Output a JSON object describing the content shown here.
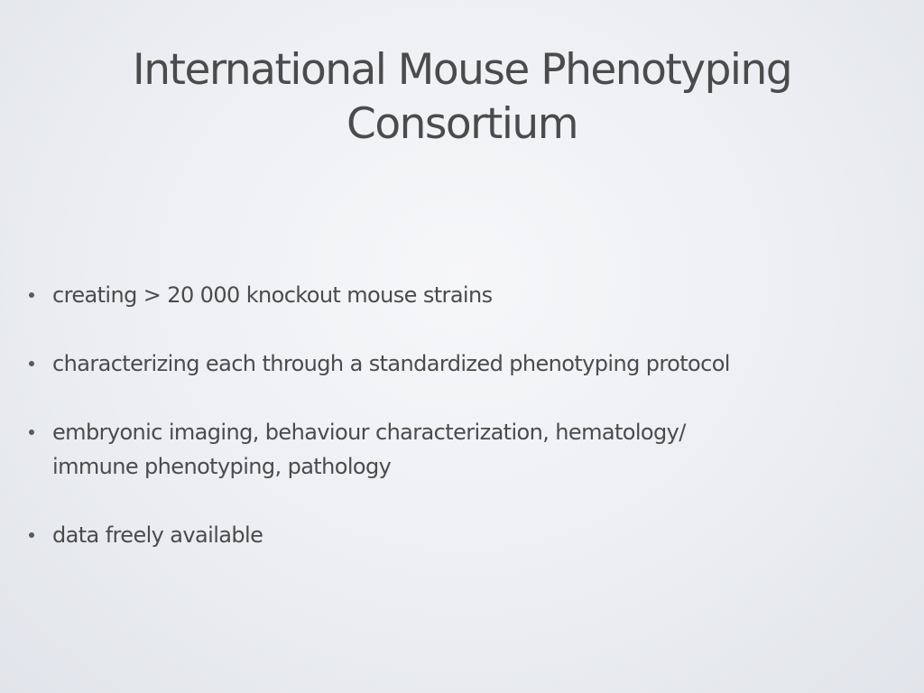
{
  "slide": {
    "title_lines": [
      "International Mouse Phenotyping",
      "Consortium"
    ],
    "bullets": [
      {
        "lines": [
          "creating > 20 000 knockout mouse strains"
        ]
      },
      {
        "lines": [
          "characterizing each through a standardized phenotyping protocol"
        ]
      },
      {
        "lines": [
          "embryonic imaging, behaviour characterization, hematology/",
          "immune phenotyping, pathology"
        ]
      },
      {
        "lines": [
          "data freely available"
        ]
      }
    ]
  }
}
